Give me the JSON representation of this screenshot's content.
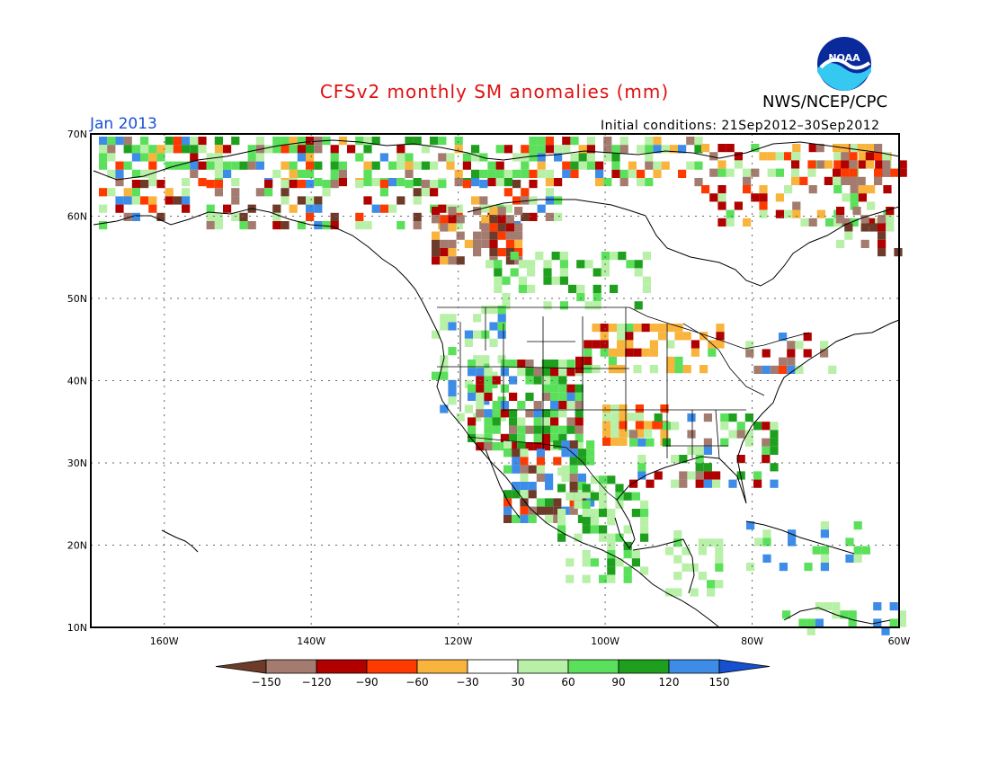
{
  "header": {
    "title": "CFSv2 monthly SM anomalies (mm)",
    "month": "Jan 2013",
    "initial_conditions": "Initial conditions: 21Sep2012–30Sep2012",
    "agency": "NWS/NCEP/CPC",
    "logo_text": "NOAA"
  },
  "map": {
    "lat_labels": [
      "70N",
      "60N",
      "50N",
      "40N",
      "30N",
      "20N",
      "10N"
    ],
    "lon_labels": [
      "160W",
      "140W",
      "120W",
      "100W",
      "80W",
      "60W"
    ],
    "grid": "dotted"
  },
  "legend": {
    "tick_labels": [
      "−150",
      "−120",
      "−90",
      "−60",
      "−30",
      "30",
      "60",
      "90",
      "120",
      "150"
    ],
    "colors": [
      "#6e3b2a",
      "#a47b6f",
      "#b00000",
      "#ff3a00",
      "#f8b43c",
      "#ffffff",
      "#b8f0a8",
      "#5ae05a",
      "#1ea01e",
      "#3c8ce8",
      "#1450d0"
    ]
  }
}
